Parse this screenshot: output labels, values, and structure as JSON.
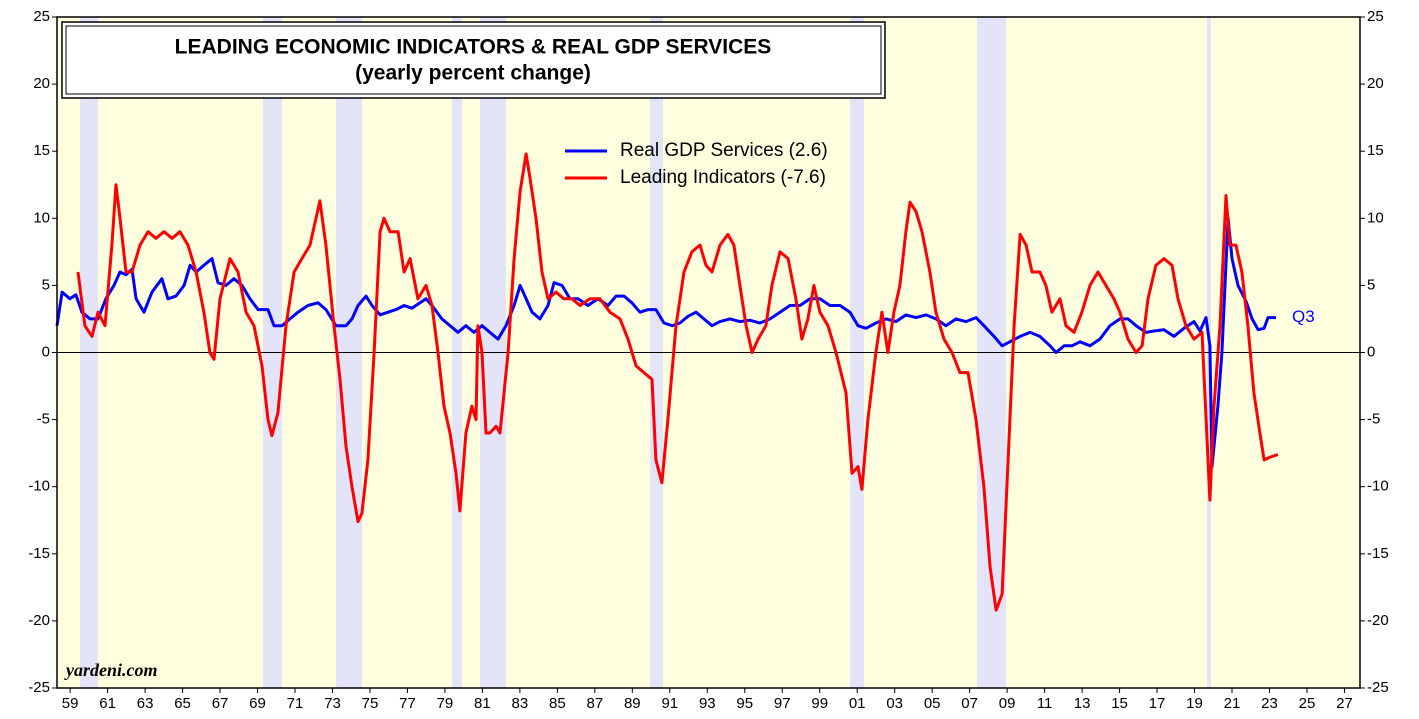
{
  "chart_data": {
    "type": "line",
    "title": "LEADING ECONOMIC INDICATORS & REAL GDP SERVICES",
    "subtitle": "(yearly percent change)",
    "xlim": [
      1958.3,
      2027.83
    ],
    "ylim": [
      -25,
      25
    ],
    "y2lim": [
      -25,
      25
    ],
    "yticks": [
      -25,
      -20,
      -15,
      -10,
      -5,
      0,
      5,
      10,
      15,
      20,
      25
    ],
    "y2ticks": [
      -25,
      -20,
      -15,
      -10,
      -5,
      0,
      5,
      10,
      15,
      20,
      25
    ],
    "xticks": [
      {
        "value": 1959,
        "label": "59"
      },
      {
        "value": 1961,
        "label": "61"
      },
      {
        "value": 1963,
        "label": "63"
      },
      {
        "value": 1965,
        "label": "65"
      },
      {
        "value": 1967,
        "label": "67"
      },
      {
        "value": 1969,
        "label": "69"
      },
      {
        "value": 1971,
        "label": "71"
      },
      {
        "value": 1973,
        "label": "73"
      },
      {
        "value": 1975,
        "label": "75"
      },
      {
        "value": 1977,
        "label": "77"
      },
      {
        "value": 1979,
        "label": "79"
      },
      {
        "value": 1981,
        "label": "81"
      },
      {
        "value": 1983,
        "label": "83"
      },
      {
        "value": 1985,
        "label": "85"
      },
      {
        "value": 1987,
        "label": "87"
      },
      {
        "value": 1989,
        "label": "89"
      },
      {
        "value": 1991,
        "label": "91"
      },
      {
        "value": 1993,
        "label": "93"
      },
      {
        "value": 1995,
        "label": "95"
      },
      {
        "value": 1997,
        "label": "97"
      },
      {
        "value": 1999,
        "label": "99"
      },
      {
        "value": 2001,
        "label": "01"
      },
      {
        "value": 2003,
        "label": "03"
      },
      {
        "value": 2005,
        "label": "05"
      },
      {
        "value": 2007,
        "label": "07"
      },
      {
        "value": 2009,
        "label": "09"
      },
      {
        "value": 2011,
        "label": "11"
      },
      {
        "value": 2013,
        "label": "13"
      },
      {
        "value": 2015,
        "label": "15"
      },
      {
        "value": 2017,
        "label": "17"
      },
      {
        "value": 2019,
        "label": "19"
      },
      {
        "value": 2021,
        "label": "21"
      },
      {
        "value": 2023,
        "label": "23"
      },
      {
        "value": 2025,
        "label": "25"
      },
      {
        "value": 2027,
        "label": "27"
      }
    ],
    "zero_line": true,
    "background_color": "#ffffe0",
    "recession_color": "#e4e4f8",
    "recessions": [
      [
        1959.53,
        1960.49
      ],
      [
        1969.29,
        1970.31
      ],
      [
        1973.19,
        1974.58
      ],
      [
        1979.38,
        1979.91
      ],
      [
        1980.87,
        1982.26
      ],
      [
        1989.94,
        1990.64
      ],
      [
        2000.62,
        2001.36
      ],
      [
        2007.39,
        2008.94
      ],
      [
        2019.66,
        2019.88
      ]
    ],
    "series": [
      {
        "name": "Real GDP Services (2.6)",
        "color": "#0000ff",
        "x": [
          1958.3,
          1958.57,
          1958.99,
          1959.31,
          1959.63,
          1960.06,
          1960.49,
          1960.91,
          1961.34,
          1961.66,
          1961.98,
          1962.3,
          1962.52,
          1962.94,
          1963.37,
          1963.9,
          1964.22,
          1964.65,
          1965.08,
          1965.4,
          1965.72,
          1966.14,
          1966.57,
          1966.89,
          1967.32,
          1967.74,
          1968.17,
          1968.6,
          1969.03,
          1969.56,
          1969.88,
          1970.31,
          1970.73,
          1971.16,
          1971.69,
          1972.23,
          1972.65,
          1973.19,
          1973.72,
          1974.04,
          1974.36,
          1974.79,
          1975.11,
          1975.54,
          1975.96,
          1976.39,
          1976.82,
          1977.24,
          1977.67,
          1977.99,
          1978.31,
          1978.84,
          1979.27,
          1979.7,
          1980.12,
          1980.55,
          1980.98,
          1981.4,
          1981.83,
          1982.26,
          1982.69,
          1983.01,
          1983.33,
          1983.65,
          1984.07,
          1984.5,
          1984.82,
          1985.25,
          1985.67,
          1986.1,
          1986.63,
          1987.17,
          1987.7,
          1988.13,
          1988.56,
          1988.98,
          1989.41,
          1989.84,
          1990.26,
          1990.69,
          1991.12,
          1991.54,
          1991.97,
          1992.4,
          1992.82,
          1993.25,
          1993.68,
          1994.21,
          1994.74,
          1995.28,
          1995.81,
          1996.35,
          1996.88,
          1997.41,
          1997.95,
          1998.48,
          1999.01,
          1999.55,
          2000.08,
          2000.61,
          2001.04,
          2001.47,
          2002.0,
          2002.54,
          2003.07,
          2003.6,
          2004.14,
          2004.67,
          2005.2,
          2005.74,
          2006.27,
          2006.8,
          2007.34,
          2007.76,
          2008.3,
          2008.73,
          2009.15,
          2009.69,
          2010.22,
          2010.75,
          2011.29,
          2011.61,
          2012.04,
          2012.46,
          2012.89,
          2013.42,
          2013.95,
          2014.49,
          2015.02,
          2015.45,
          2015.88,
          2016.41,
          2016.84,
          2017.37,
          2017.9,
          2018.44,
          2018.97,
          2019.29,
          2019.61,
          2019.82,
          2019.93,
          2020.25,
          2020.46,
          2020.79,
          2021.0,
          2021.32,
          2021.75,
          2022.07,
          2022.39,
          2022.71,
          2022.92,
          2023.35
        ],
        "values": [
          2,
          4.5,
          4,
          4.3,
          3,
          2.5,
          2.5,
          4,
          5,
          6,
          5.8,
          6.2,
          4,
          3,
          4.5,
          5.5,
          4,
          4.2,
          5,
          6.5,
          6,
          6.5,
          7,
          5.2,
          5,
          5.5,
          5,
          4,
          3.2,
          3.2,
          2,
          2,
          2.5,
          3,
          3.5,
          3.7,
          3.2,
          2,
          2,
          2.5,
          3.5,
          4.2,
          3.5,
          2.8,
          3,
          3.2,
          3.5,
          3.3,
          3.7,
          4,
          3.5,
          2.5,
          2,
          1.5,
          2,
          1.5,
          2,
          1.5,
          1,
          2,
          3.5,
          5,
          4,
          3,
          2.5,
          3.5,
          5.2,
          5,
          4,
          4,
          3.5,
          4,
          3.5,
          4.2,
          4.2,
          3.7,
          3,
          3.2,
          3.2,
          2.2,
          2,
          2.2,
          2.7,
          3,
          2.5,
          2,
          2.3,
          2.5,
          2.3,
          2.4,
          2.2,
          2.5,
          3,
          3.5,
          3.5,
          4,
          4,
          3.5,
          3.5,
          3,
          2,
          1.8,
          2.2,
          2.5,
          2.3,
          2.8,
          2.6,
          2.8,
          2.5,
          2,
          2.5,
          2.3,
          2.6,
          2,
          1.2,
          0.5,
          0.8,
          1.2,
          1.5,
          1.2,
          0.5,
          0,
          0.5,
          0.5,
          0.8,
          0.5,
          1,
          2,
          2.5,
          2.5,
          2,
          1.5,
          1.6,
          1.7,
          1.2,
          1.8,
          2.3,
          1.6,
          2.6,
          0.5,
          -8.5,
          -4,
          0,
          10,
          7,
          5,
          3.8,
          2.5,
          1.7,
          1.8,
          2.6,
          2.6
        ]
      },
      {
        "name": "Leading Indicators (-7.6)",
        "color": "#ff0000",
        "x": [
          1959.42,
          1959.79,
          1960.17,
          1960.49,
          1960.86,
          1961.23,
          1961.45,
          1961.66,
          1961.98,
          1962.3,
          1962.73,
          1963.16,
          1963.58,
          1964.01,
          1964.44,
          1964.86,
          1965.29,
          1965.72,
          1966.14,
          1966.46,
          1966.68,
          1967.0,
          1967.53,
          1967.96,
          1968.39,
          1968.81,
          1969.24,
          1969.56,
          1969.77,
          1970.09,
          1970.52,
          1970.95,
          1971.37,
          1971.8,
          1972.12,
          1972.33,
          1972.65,
          1973.08,
          1973.4,
          1973.72,
          1974.04,
          1974.36,
          1974.57,
          1974.89,
          1975.22,
          1975.54,
          1975.75,
          1976.07,
          1976.5,
          1976.82,
          1977.14,
          1977.56,
          1977.99,
          1978.31,
          1978.63,
          1978.95,
          1979.27,
          1979.59,
          1979.8,
          1980.12,
          1980.44,
          1980.66,
          1980.76,
          1980.98,
          1981.19,
          1981.4,
          1981.73,
          1981.94,
          1982.37,
          1982.69,
          1983.01,
          1983.33,
          1983.54,
          1983.86,
          1984.18,
          1984.5,
          1984.93,
          1985.35,
          1985.78,
          1986.21,
          1986.74,
          1987.27,
          1987.81,
          1988.34,
          1988.77,
          1989.2,
          1989.62,
          1990.05,
          1990.26,
          1990.58,
          1990.9,
          1991.33,
          1991.76,
          1992.18,
          1992.61,
          1992.93,
          1993.25,
          1993.68,
          1994.1,
          1994.42,
          1994.74,
          1995.07,
          1995.39,
          1995.71,
          1996.13,
          1996.45,
          1996.88,
          1997.31,
          1997.73,
          1998.05,
          1998.37,
          1998.69,
          1999.01,
          1999.44,
          1999.87,
          2000.4,
          2000.72,
          2001.04,
          2001.25,
          2001.57,
          2002.0,
          2002.32,
          2002.64,
          2002.96,
          2003.28,
          2003.6,
          2003.82,
          2004.14,
          2004.46,
          2004.88,
          2005.2,
          2005.63,
          2006.06,
          2006.48,
          2006.91,
          2007.34,
          2007.76,
          2008.09,
          2008.41,
          2008.73,
          2009.05,
          2009.37,
          2009.69,
          2010.01,
          2010.33,
          2010.75,
          2011.07,
          2011.39,
          2011.82,
          2012.14,
          2012.57,
          2012.99,
          2013.42,
          2013.85,
          2014.27,
          2014.7,
          2015.02,
          2015.45,
          2015.88,
          2016.2,
          2016.52,
          2016.94,
          2017.37,
          2017.8,
          2018.12,
          2018.54,
          2018.97,
          2019.4,
          2019.82,
          2020.04,
          2020.36,
          2020.68,
          2020.89,
          2021.21,
          2021.53,
          2021.85,
          2022.17,
          2022.49,
          2022.71,
          2023.03,
          2023.45
        ],
        "values": [
          6,
          2,
          1.2,
          3,
          2,
          8,
          12.5,
          10,
          6,
          6,
          8,
          9,
          8.5,
          9,
          8.5,
          9,
          8,
          6,
          3,
          0,
          -0.5,
          4,
          7,
          6,
          3,
          2,
          -1,
          -5,
          -6.2,
          -4.5,
          2,
          6,
          7,
          8,
          10,
          11.3,
          8,
          2,
          -2,
          -7,
          -10,
          -12.6,
          -12,
          -8,
          0,
          9,
          10,
          9,
          9,
          6,
          7,
          4,
          5,
          3.5,
          0,
          -4,
          -6,
          -9,
          -11.8,
          -6,
          -4,
          -5,
          2,
          0,
          -6,
          -6,
          -5.5,
          -6,
          0,
          7,
          12,
          14.8,
          13,
          10,
          6,
          4,
          4.5,
          4,
          4,
          3.5,
          4,
          4,
          3,
          2.5,
          1,
          -1,
          -1.5,
          -2,
          -8,
          -9.7,
          -5,
          2,
          6,
          7.5,
          8,
          6.5,
          6,
          8,
          8.8,
          8,
          5,
          2,
          0,
          1,
          2,
          5,
          7.5,
          7,
          4,
          1,
          2.5,
          5,
          3,
          2,
          0,
          -3,
          -9,
          -8.5,
          -10.2,
          -5,
          0,
          3,
          0,
          3,
          5,
          9,
          11.2,
          10.5,
          9,
          6,
          3,
          1,
          0,
          -1.5,
          -1.5,
          -5,
          -10,
          -16,
          -19.2,
          -18,
          -8,
          2,
          8.8,
          8,
          6,
          6,
          5,
          3,
          4,
          2,
          1.5,
          3,
          5,
          6,
          5,
          4,
          3,
          1,
          0,
          0.5,
          4,
          6.5,
          7,
          6.5,
          4,
          2,
          1,
          1.5,
          -11,
          -4,
          2,
          11.7,
          8,
          8,
          6,
          2,
          -3,
          -6,
          -8,
          -7.8,
          -7.6
        ]
      }
    ],
    "annotations": [
      {
        "text": "Q3",
        "x": 2023.35,
        "y": 2.6,
        "color": "#0000ff"
      },
      {
        "text": "yardeni.com"
      }
    ]
  }
}
